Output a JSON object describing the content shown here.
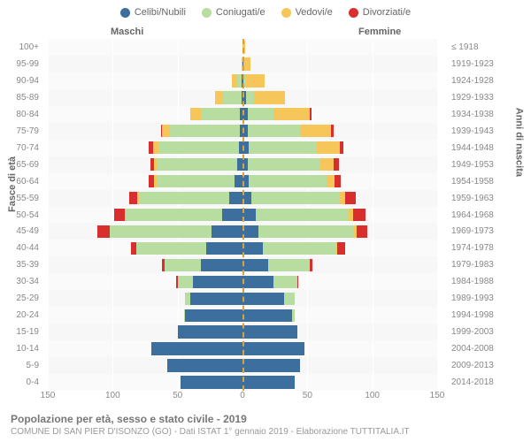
{
  "legend": [
    {
      "label": "Celibi/Nubili",
      "color": "#3c6e9e"
    },
    {
      "label": "Coniugati/e",
      "color": "#b7dda0"
    },
    {
      "label": "Vedovi/e",
      "color": "#f6c65a"
    },
    {
      "label": "Divorziati/e",
      "color": "#d92e2e"
    }
  ],
  "header_male": "Maschi",
  "header_female": "Femmine",
  "axis_left_title": "Fasce di età",
  "axis_right_title": "Anni di nascita",
  "x_ticks": [
    150,
    100,
    50,
    0,
    50,
    100,
    150
  ],
  "x_max": 150,
  "colors": {
    "single": "#3c6e9e",
    "married": "#b7dda0",
    "widowed": "#f6c65a",
    "divorced": "#d92e2e",
    "plot_bg": "#f7f7f7",
    "grid": "#ffffff",
    "center_dash": "#dba23a"
  },
  "rows": [
    {
      "age": "100+",
      "year": "≤ 1918",
      "m": {
        "s": 0,
        "c": 0,
        "w": 0,
        "d": 0
      },
      "f": {
        "s": 0,
        "c": 0,
        "w": 2,
        "d": 0
      }
    },
    {
      "age": "95-99",
      "year": "1919-1923",
      "m": {
        "s": 0,
        "c": 0,
        "w": 1,
        "d": 0
      },
      "f": {
        "s": 1,
        "c": 0,
        "w": 5,
        "d": 0
      }
    },
    {
      "age": "90-94",
      "year": "1924-1928",
      "m": {
        "s": 1,
        "c": 3,
        "w": 4,
        "d": 0
      },
      "f": {
        "s": 1,
        "c": 2,
        "w": 14,
        "d": 0
      }
    },
    {
      "age": "85-89",
      "year": "1929-1933",
      "m": {
        "s": 1,
        "c": 14,
        "w": 6,
        "d": 0
      },
      "f": {
        "s": 3,
        "c": 6,
        "w": 24,
        "d": 0
      }
    },
    {
      "age": "80-84",
      "year": "1934-1938",
      "m": {
        "s": 2,
        "c": 30,
        "w": 8,
        "d": 0
      },
      "f": {
        "s": 4,
        "c": 20,
        "w": 28,
        "d": 1
      }
    },
    {
      "age": "75-79",
      "year": "1939-1943",
      "m": {
        "s": 2,
        "c": 54,
        "w": 6,
        "d": 1
      },
      "f": {
        "s": 4,
        "c": 40,
        "w": 24,
        "d": 2
      }
    },
    {
      "age": "70-74",
      "year": "1944-1948",
      "m": {
        "s": 3,
        "c": 62,
        "w": 4,
        "d": 3
      },
      "f": {
        "s": 5,
        "c": 52,
        "w": 18,
        "d": 3
      }
    },
    {
      "age": "65-69",
      "year": "1949-1953",
      "m": {
        "s": 4,
        "c": 62,
        "w": 2,
        "d": 3
      },
      "f": {
        "s": 4,
        "c": 56,
        "w": 10,
        "d": 4
      }
    },
    {
      "age": "60-64",
      "year": "1954-1958",
      "m": {
        "s": 6,
        "c": 60,
        "w": 2,
        "d": 4
      },
      "f": {
        "s": 5,
        "c": 60,
        "w": 6,
        "d": 5
      }
    },
    {
      "age": "55-59",
      "year": "1959-1963",
      "m": {
        "s": 10,
        "c": 70,
        "w": 1,
        "d": 6
      },
      "f": {
        "s": 7,
        "c": 68,
        "w": 4,
        "d": 8
      }
    },
    {
      "age": "50-54",
      "year": "1964-1968",
      "m": {
        "s": 16,
        "c": 74,
        "w": 1,
        "d": 8
      },
      "f": {
        "s": 10,
        "c": 72,
        "w": 3,
        "d": 10
      }
    },
    {
      "age": "45-49",
      "year": "1969-1973",
      "m": {
        "s": 24,
        "c": 78,
        "w": 0,
        "d": 10
      },
      "f": {
        "s": 12,
        "c": 74,
        "w": 2,
        "d": 8
      }
    },
    {
      "age": "40-44",
      "year": "1974-1978",
      "m": {
        "s": 28,
        "c": 54,
        "w": 0,
        "d": 4
      },
      "f": {
        "s": 16,
        "c": 56,
        "w": 1,
        "d": 6
      }
    },
    {
      "age": "35-39",
      "year": "1979-1983",
      "m": {
        "s": 32,
        "c": 28,
        "w": 0,
        "d": 2
      },
      "f": {
        "s": 20,
        "c": 32,
        "w": 0,
        "d": 2
      }
    },
    {
      "age": "30-34",
      "year": "1984-1988",
      "m": {
        "s": 38,
        "c": 12,
        "w": 0,
        "d": 1
      },
      "f": {
        "s": 24,
        "c": 18,
        "w": 0,
        "d": 1
      }
    },
    {
      "age": "25-29",
      "year": "1989-1993",
      "m": {
        "s": 40,
        "c": 4,
        "w": 0,
        "d": 0
      },
      "f": {
        "s": 32,
        "c": 8,
        "w": 0,
        "d": 0
      }
    },
    {
      "age": "20-24",
      "year": "1994-1998",
      "m": {
        "s": 44,
        "c": 1,
        "w": 0,
        "d": 0
      },
      "f": {
        "s": 38,
        "c": 2,
        "w": 0,
        "d": 0
      }
    },
    {
      "age": "15-19",
      "year": "1999-2003",
      "m": {
        "s": 50,
        "c": 0,
        "w": 0,
        "d": 0
      },
      "f": {
        "s": 42,
        "c": 0,
        "w": 0,
        "d": 0
      }
    },
    {
      "age": "10-14",
      "year": "2004-2008",
      "m": {
        "s": 70,
        "c": 0,
        "w": 0,
        "d": 0
      },
      "f": {
        "s": 48,
        "c": 0,
        "w": 0,
        "d": 0
      }
    },
    {
      "age": "5-9",
      "year": "2009-2013",
      "m": {
        "s": 58,
        "c": 0,
        "w": 0,
        "d": 0
      },
      "f": {
        "s": 44,
        "c": 0,
        "w": 0,
        "d": 0
      }
    },
    {
      "age": "0-4",
      "year": "2014-2018",
      "m": {
        "s": 48,
        "c": 0,
        "w": 0,
        "d": 0
      },
      "f": {
        "s": 40,
        "c": 0,
        "w": 0,
        "d": 0
      }
    }
  ],
  "footer_title": "Popolazione per età, sesso e stato civile - 2019",
  "footer_sub": "COMUNE DI SAN PIER D'ISONZO (GO) - Dati ISTAT 1° gennaio 2019 - Elaborazione TUTTITALIA.IT"
}
